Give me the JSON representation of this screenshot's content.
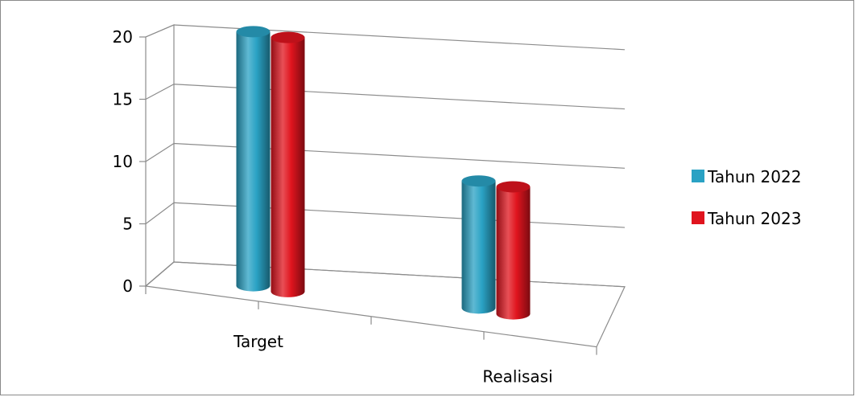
{
  "chart_data": {
    "type": "bar",
    "style": "3d-cylinder",
    "categories": [
      "Target",
      "Realisasi"
    ],
    "series": [
      {
        "name": "Tahun 2022",
        "color": "#2aa2c4",
        "values": [
          20,
          10
        ]
      },
      {
        "name": "Tahun 2023",
        "color": "#e0141e",
        "values": [
          20,
          10
        ]
      }
    ],
    "y_ticks": [
      "0",
      "5",
      "10",
      "15",
      "20"
    ],
    "ylim": [
      0,
      20
    ],
    "grid": true,
    "legend_position": "right"
  }
}
